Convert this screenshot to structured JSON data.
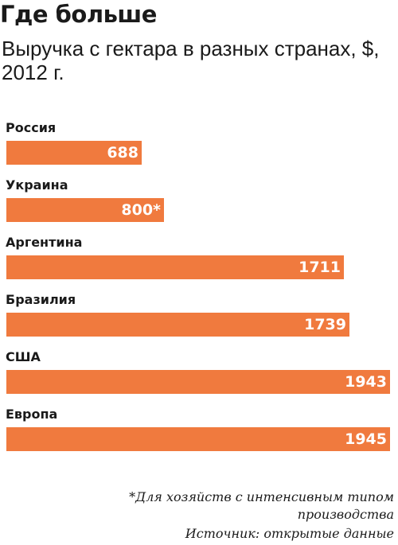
{
  "header": {
    "title": "Где больше",
    "subtitle": "Выручка с гектара в разных странах, $, 2012 г."
  },
  "chart_data": {
    "type": "bar",
    "orientation": "horizontal",
    "categories": [
      "Россия",
      "Украина",
      "Аргентина",
      "Бразилия",
      "США",
      "Европа"
    ],
    "values": [
      688,
      800,
      1711,
      1739,
      1943,
      1945
    ],
    "value_labels": [
      "688",
      "800*",
      "1711",
      "1739",
      "1943",
      "1945"
    ],
    "bar_color": "#f07a3e",
    "value_label_color": "#ffffff",
    "grid": false,
    "legend": "none"
  },
  "footer": {
    "footnote": "*Для хозяйств с интенсивным типом производства",
    "source": "Источник: открытые данные"
  }
}
